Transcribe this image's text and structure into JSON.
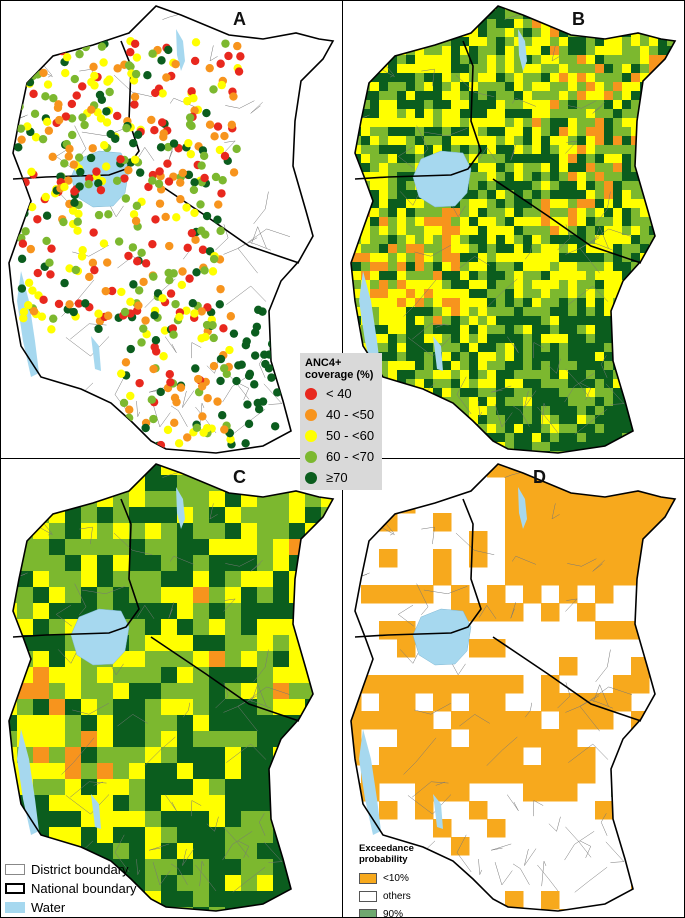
{
  "panels": [
    {
      "label": "A"
    },
    {
      "label": "B"
    },
    {
      "label": "C"
    },
    {
      "label": "D"
    }
  ],
  "coverage_legend": {
    "title_line1": "ANC4+",
    "title_line2": "coverage (%)",
    "classes": [
      {
        "label": "< 40",
        "color": "#e8281e"
      },
      {
        "label": "40 - <50",
        "color": "#f7941d"
      },
      {
        "label": "50 - <60",
        "color": "#ffff00"
      },
      {
        "label": "60 - <70",
        "color": "#7cb82f"
      },
      {
        "label": "≥70",
        "color": "#0b5d1e"
      }
    ]
  },
  "boundary_legend": {
    "district": "District boundary",
    "national": "National boundary",
    "water": "Water",
    "water_color": "#a6d8ef"
  },
  "exceedance_legend": {
    "title_line1": "Exceedance",
    "title_line2": "probability",
    "classes": [
      {
        "label": "<10%",
        "color": "#f7a91d"
      },
      {
        "label": "others",
        "color": "#ffffff"
      },
      {
        "label": "90%",
        "color": "#6fa86f"
      }
    ]
  }
}
